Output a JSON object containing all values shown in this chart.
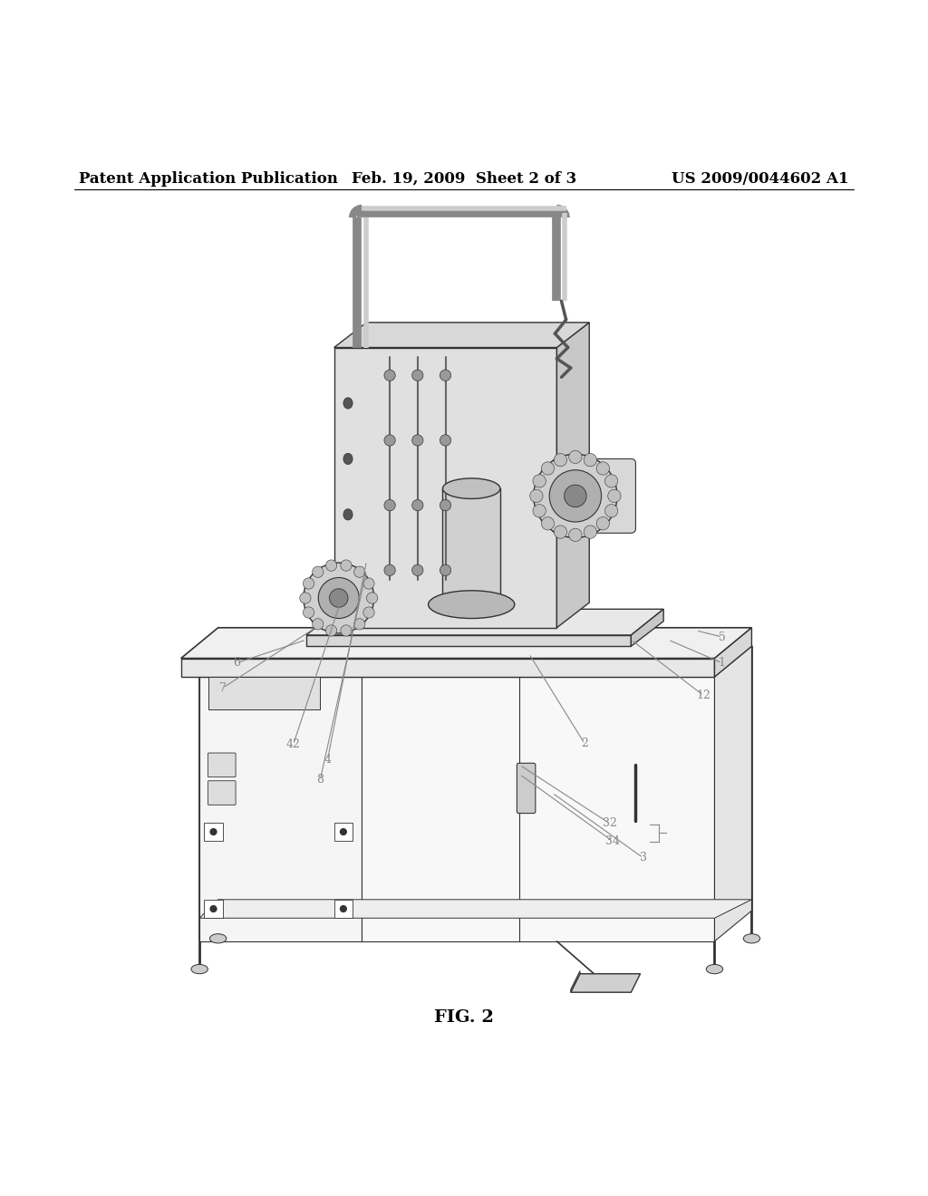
{
  "background_color": "#ffffff",
  "header_left": "Patent Application Publication",
  "header_center": "Feb. 19, 2009  Sheet 2 of 3",
  "header_right": "US 2009/0044602 A1",
  "figure_label": "FIG. 2",
  "header_fontsize": 12,
  "figure_label_fontsize": 14,
  "line_color": "#555555",
  "dark_line": "#333333",
  "light_line": "#aaaaaa",
  "label_color": "#888888"
}
